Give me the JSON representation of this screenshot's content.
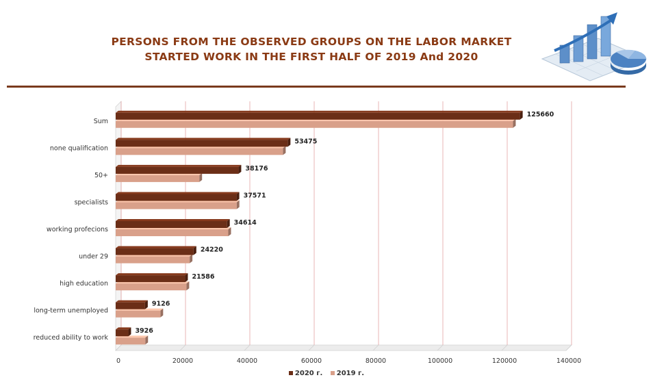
{
  "header": {
    "title_line1": "PERSONS FROM THE OBSERVED GROUPS ON THE LABOR MARKET",
    "title_line2": "STARTED WORK IN THE FIRST HALF OF 2019 And 2020"
  },
  "logo": {
    "icon": "chart-illustration-icon"
  },
  "colors": {
    "series_2020": "#6b2e17",
    "series_2019": "#d9a08a",
    "title": "#8a3a14",
    "rule": "#7a3a1c",
    "grid": "#e3a3a3"
  },
  "chart_data": {
    "type": "bar",
    "orientation": "horizontal",
    "style": "3d",
    "categories": [
      "Sum",
      "none qualification",
      "50+",
      "specialists",
      "working profecions",
      "under 29",
      "high education",
      "long-term unemployed",
      "reduced ability to work"
    ],
    "series": [
      {
        "name": "2020 г.",
        "values": [
          125660,
          53475,
          38176,
          37571,
          34614,
          24220,
          21586,
          9126,
          3926
        ],
        "data_labels": [
          "125660",
          "53475",
          "38176",
          "37571",
          "34614",
          "24220",
          "21586",
          "9126",
          "3926"
        ]
      },
      {
        "name": "2019 г.",
        "values": [
          123500,
          52000,
          26000,
          37600,
          35000,
          23000,
          22000,
          13900,
          9200
        ]
      }
    ],
    "xlim": [
      0,
      140000
    ],
    "xticks": [
      "0",
      "20000",
      "40000",
      "60000",
      "80000",
      "100000",
      "120000",
      "140000"
    ],
    "grid": true,
    "legend": "bottom"
  }
}
